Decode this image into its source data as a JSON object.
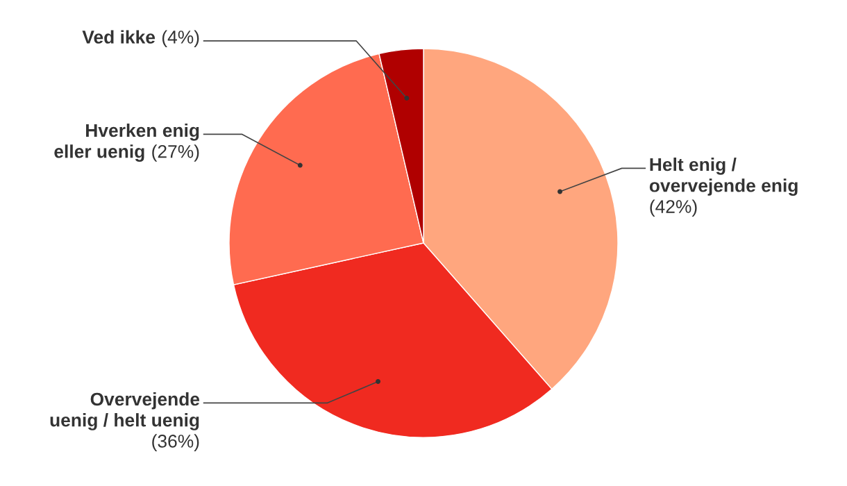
{
  "chart_data": {
    "type": "pie",
    "categories": [
      "Helt enig /\novervejende enig",
      "Overvejende\nuenig / helt uenig",
      "Hverken enig\neller uenig",
      "Ved ikke"
    ],
    "values": [
      42,
      36,
      27,
      4
    ],
    "value_labels": [
      "\n(42%)",
      "\n(36%)",
      "(27%)",
      "(4%)"
    ],
    "colors": [
      "#ffa67e",
      "#f02a20",
      "#ff6b50",
      "#b00000"
    ]
  }
}
